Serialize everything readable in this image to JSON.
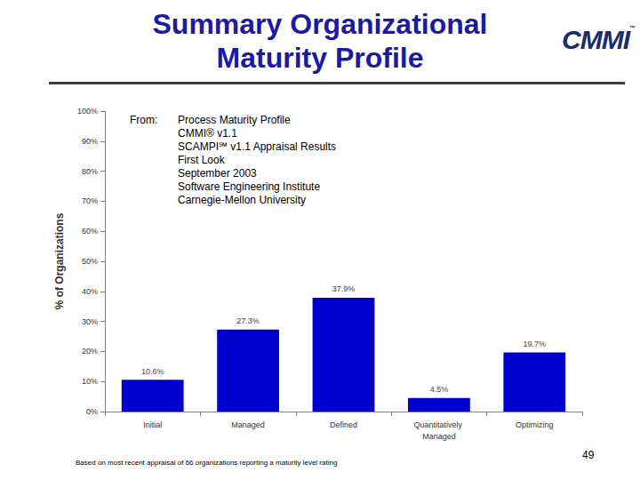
{
  "title": "Summary Organizational Maturity Profile",
  "logo": "CMMI",
  "logo_mark": "™",
  "source": {
    "label": "From:",
    "lines": [
      "Process Maturity Profile",
      "CMMI® v1.1",
      "SCAMPI℠ v1.1 Appraisal Results",
      "First Look",
      "September 2003",
      "Software Engineering Institute",
      "Carnegie-Mellon University"
    ]
  },
  "footnote": "Based on most recent appraisal of 66 organizations reporting a maturity level rating",
  "page_number": "49",
  "chart_data": {
    "type": "bar",
    "categories": [
      "Initial",
      "Managed",
      "Defined",
      "Quantitatively Managed",
      "Optimizing"
    ],
    "values": [
      10.6,
      27.3,
      37.9,
      4.5,
      19.7
    ],
    "value_labels": [
      "10.6%",
      "27.3%",
      "37.9%",
      "4.5%",
      "19.7%"
    ],
    "color": "#0000cc",
    "ylabel": "% of Organizations",
    "ylim": [
      0,
      100
    ],
    "yticks": [
      {
        "value": 0,
        "label": "0%"
      },
      {
        "value": 10,
        "label": "10%"
      },
      {
        "value": 20,
        "label": "20%"
      },
      {
        "value": 30,
        "label": "30%"
      },
      {
        "value": 40,
        "label": "40%"
      },
      {
        "value": 50,
        "label": "50%"
      },
      {
        "value": 60,
        "label": "60%"
      },
      {
        "value": 70,
        "label": "70%"
      },
      {
        "value": 80,
        "label": "80%"
      },
      {
        "value": 90,
        "label": "90%"
      },
      {
        "value": 100,
        "label": "100%"
      }
    ],
    "grid": false,
    "data_labels": true
  }
}
